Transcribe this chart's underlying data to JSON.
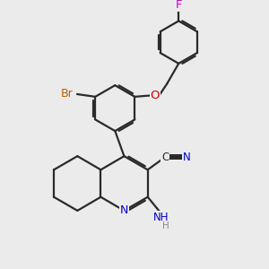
{
  "bg_color": "#ebebeb",
  "bond_color": "#2a2a2a",
  "n_color": "#0000cc",
  "o_color": "#cc0000",
  "br_color": "#b36200",
  "f_color": "#cc00cc",
  "c_color": "#2a2a2a",
  "line_width": 1.6,
  "figsize": [
    3.0,
    3.0
  ],
  "dpi": 100,
  "xlim": [
    0,
    10
  ],
  "ylim": [
    0,
    10
  ]
}
